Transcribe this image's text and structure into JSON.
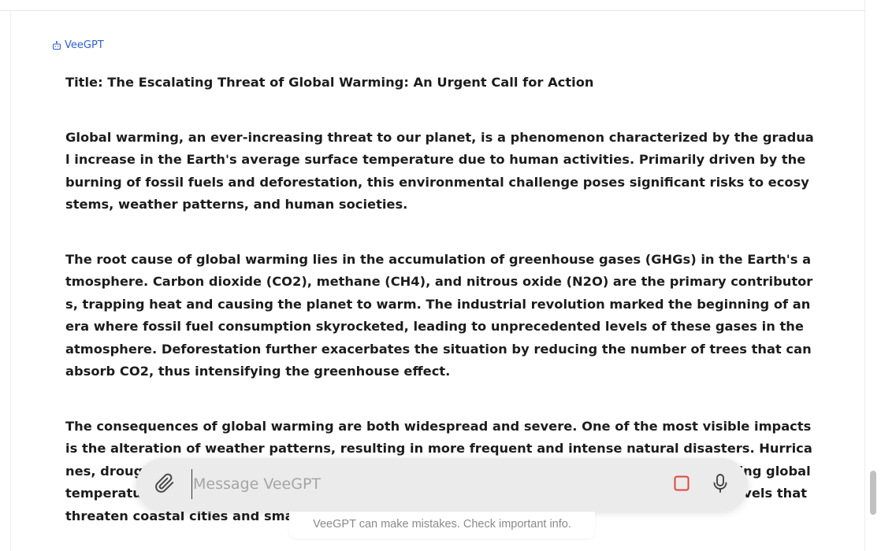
{
  "sender": {
    "name": "VeeGPT"
  },
  "message": {
    "title": "Title: The Escalating Threat of Global Warming: An Urgent Call for Action",
    "paragraphs": [
      "Global warming, an ever-increasing threat to our planet, is a phenomenon characterized by the gradual increase in the Earth's average surface temperature due to human activities. Primarily driven by the burning of fossil fuels and deforestation, this environmental challenge poses significant risks to ecosystems, weather patterns, and human societies.",
      "The root cause of global warming lies in the accumulation of greenhouse gases (GHGs) in the Earth's atmosphere. Carbon dioxide (CO2), methane (CH4), and nitrous oxide (N2O) are the primary contributors, trapping heat and causing the planet to warm. The industrial revolution marked the beginning of an era where fossil fuel consumption skyrocketed, leading to unprecedented levels of these gases in the atmosphere. Deforestation further exacerbates the situation by reducing the number of trees that can absorb CO2, thus intensifying the greenhouse effect.",
      "The consequences of global warming are both widespread and severe. One of the most visible impacts is the alteration of weather patterns, resulting in more frequent and intense natural disasters. Hurricanes, droughts, and floods have become more destructive and unpredictable. Additionally, rising global temperatures contribute to the melting of polar ice caps and glaciers, leading to rising sea levels that threaten coastal cities and small island nations with su"
    ]
  },
  "composer": {
    "placeholder": "Message VeeGPT",
    "value": ""
  },
  "disclaimer": "VeeGPT can make mistakes. Check important info.",
  "colors": {
    "accent": "#2f5fd6",
    "stop": "#e0453a",
    "composer_bg": "#ebebeb"
  },
  "icons": {
    "sender": "robot-icon",
    "attach": "paperclip-icon",
    "stop": "stop-icon",
    "mic": "microphone-icon"
  }
}
